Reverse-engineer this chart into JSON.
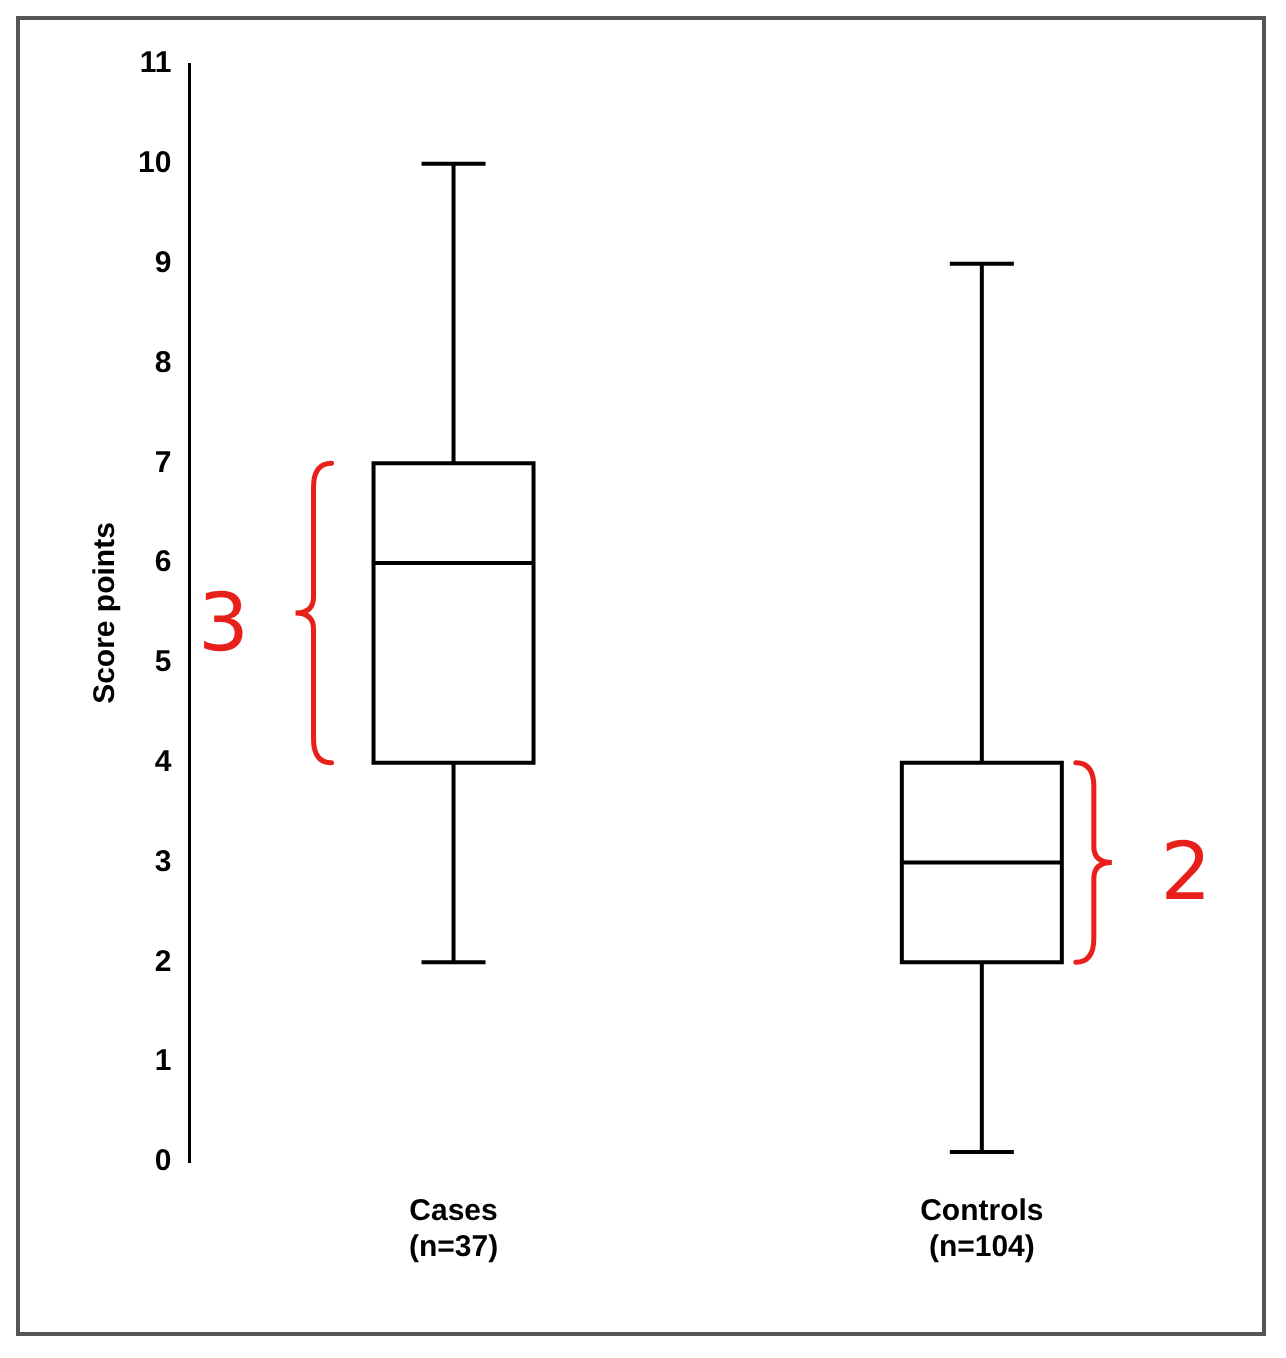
{
  "chart_data": {
    "type": "box",
    "ylabel": "Score points",
    "categories": [
      "Cases\n(n=37)",
      "Controls\n(n=104)"
    ],
    "boxes": [
      {
        "low": 2,
        "q1": 4,
        "median": 6,
        "q3": 7,
        "high": 10
      },
      {
        "low": 0.1,
        "q1": 2,
        "median": 3,
        "q3": 4,
        "high": 9
      }
    ],
    "color": "#000000",
    "ylim": [
      0,
      11
    ],
    "yticks": [
      0,
      1,
      2,
      3,
      4,
      5,
      6,
      7,
      8,
      9,
      10,
      11
    ],
    "grid": false,
    "legend": false,
    "annotations": [
      "3",
      "2"
    ]
  }
}
